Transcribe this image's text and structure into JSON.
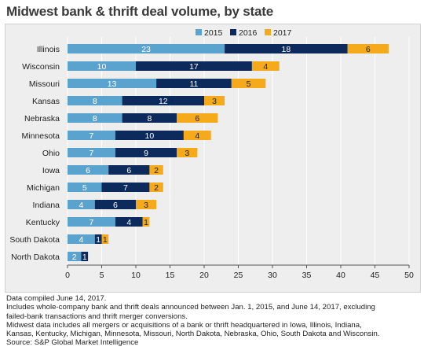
{
  "title": "Midwest bank & thrift deal volume, by state",
  "colors": {
    "2015": "#5ba3cf",
    "2016": "#0c2a5c",
    "2017": "#f5aa1c",
    "panel": "#eeeeee"
  },
  "chart_data": {
    "type": "bar",
    "orientation": "horizontal",
    "stacked": true,
    "categories": [
      "Illinois",
      "Wisconsin",
      "Missouri",
      "Kansas",
      "Nebraska",
      "Minnesota",
      "Ohio",
      "Iowa",
      "Michigan",
      "Indiana",
      "Kentucky",
      "South Dakota",
      "North Dakota"
    ],
    "series": [
      {
        "name": "2015",
        "values": [
          23,
          10,
          13,
          8,
          8,
          7,
          7,
          6,
          5,
          4,
          7,
          4,
          2
        ]
      },
      {
        "name": "2016",
        "values": [
          18,
          17,
          11,
          12,
          8,
          10,
          9,
          6,
          7,
          6,
          4,
          1,
          1
        ]
      },
      {
        "name": "2017",
        "values": [
          6,
          4,
          5,
          3,
          6,
          4,
          3,
          2,
          2,
          3,
          1,
          1,
          0
        ]
      }
    ],
    "xlim": [
      0,
      50
    ],
    "xticks": [
      0,
      5,
      10,
      15,
      20,
      25,
      30,
      35,
      40,
      45,
      50
    ],
    "legend_position": "top",
    "grid": "vertical"
  },
  "notes": [
    "Data compiled June 14, 2017.",
    "Includes whole-company bank and thrift deals announced between Jan. 1, 2015, and June 14, 2017, excluding",
    "failed-bank transactions and thrift merger conversions.",
    "Midwest data includes all mergers or acquisitions of a bank or thrift headquartered in Iowa, Illinois, Indiana,",
    "Kansas, Kentucky, Michigan, Minnesota, Missouri, North Dakota, Nebraska, Ohio, South Dakota and Wisconsin.",
    "Source: S&P Global Market Intelligence"
  ]
}
